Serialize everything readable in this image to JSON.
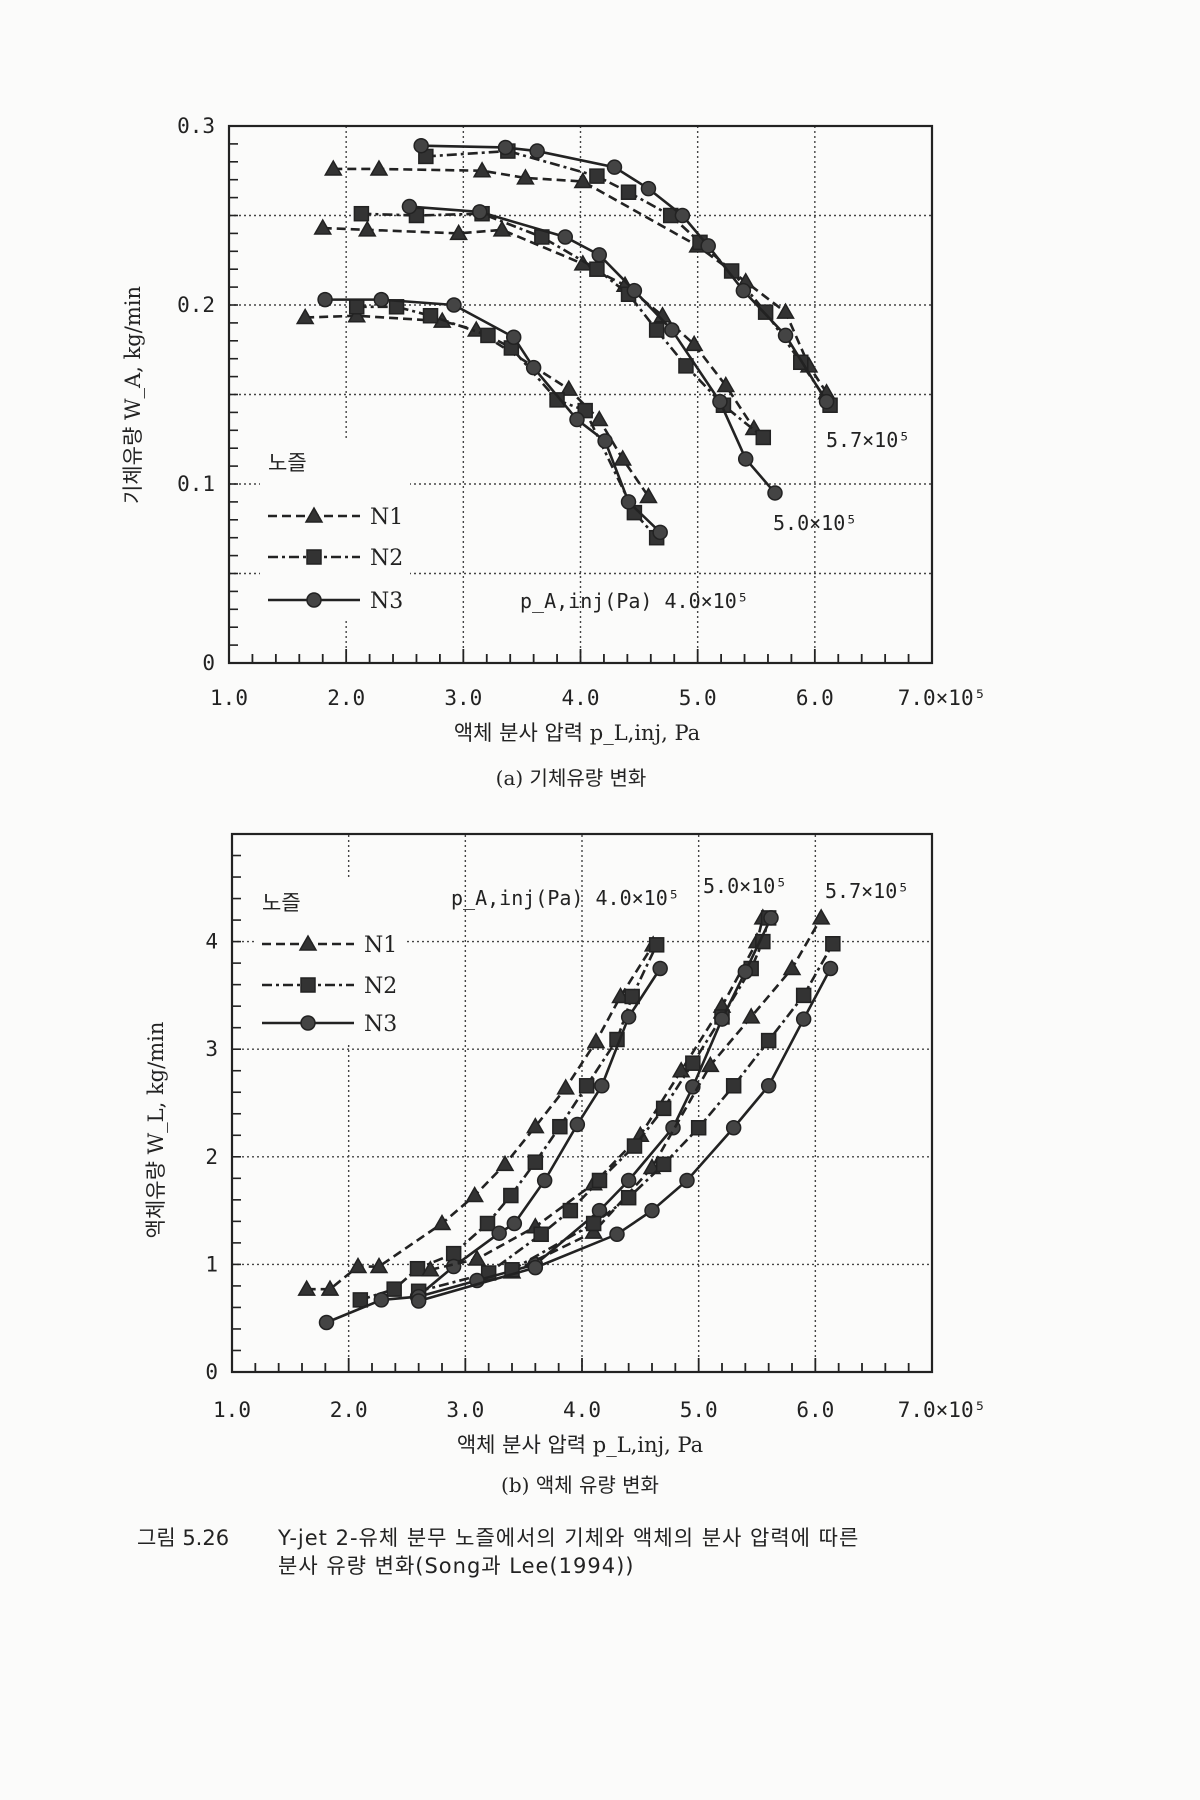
{
  "chart_data": [
    {
      "type": "line",
      "panel_label": "(a) 기체유량 변화",
      "xlabel": "액체 분사 압력 p_L,inj, Pa",
      "ylabel": "기체유량 W_A, kg/min",
      "xlim": [
        1.0,
        7.0
      ],
      "ylim": [
        0,
        0.3
      ],
      "x_unit_suffix": "×10⁵",
      "xticks": [
        "1.0",
        "2.0",
        "3.0",
        "4.0",
        "5.0",
        "6.0",
        "7.0×10⁵"
      ],
      "yticks": [
        "0",
        "0.1",
        "0.2",
        "0.3"
      ],
      "grid": true,
      "legend": {
        "title": "노즐",
        "placement": "left",
        "entries": [
          "N1",
          "N2",
          "N3"
        ]
      },
      "annotations": [
        "5.7×10⁵",
        "5.0×10⁵",
        "p_A,inj(Pa) 4.0×10⁵"
      ],
      "series": [
        {
          "name": "N1",
          "pA": "5.7×10⁵",
          "points": [
            [
              1.89,
              0.276
            ],
            [
              2.28,
              0.276
            ],
            [
              3.16,
              0.275
            ],
            [
              3.53,
              0.271
            ],
            [
              4.02,
              0.269
            ],
            [
              5.0,
              0.233
            ],
            [
              5.41,
              0.213
            ],
            [
              5.75,
              0.196
            ],
            [
              5.95,
              0.166
            ],
            [
              6.1,
              0.151
            ]
          ]
        },
        {
          "name": "N2",
          "pA": "5.7×10⁵",
          "points": [
            [
              2.68,
              0.283
            ],
            [
              3.38,
              0.286
            ],
            [
              4.14,
              0.272
            ],
            [
              4.41,
              0.263
            ],
            [
              4.77,
              0.25
            ],
            [
              5.02,
              0.235
            ],
            [
              5.29,
              0.219
            ],
            [
              5.58,
              0.196
            ],
            [
              5.88,
              0.168
            ],
            [
              6.13,
              0.144
            ]
          ]
        },
        {
          "name": "N3",
          "pA": "5.7×10⁵",
          "points": [
            [
              2.64,
              0.289
            ],
            [
              3.36,
              0.288
            ],
            [
              3.63,
              0.286
            ],
            [
              4.29,
              0.277
            ],
            [
              4.58,
              0.265
            ],
            [
              4.87,
              0.25
            ],
            [
              5.09,
              0.233
            ],
            [
              5.39,
              0.208
            ],
            [
              5.75,
              0.183
            ],
            [
              6.1,
              0.146
            ]
          ]
        },
        {
          "name": "N1",
          "pA": "5.0×10⁵",
          "points": [
            [
              1.8,
              0.243
            ],
            [
              2.18,
              0.242
            ],
            [
              2.96,
              0.24
            ],
            [
              3.33,
              0.242
            ],
            [
              4.02,
              0.223
            ],
            [
              4.38,
              0.211
            ],
            [
              4.7,
              0.194
            ],
            [
              4.97,
              0.178
            ],
            [
              5.24,
              0.155
            ],
            [
              5.48,
              0.131
            ]
          ]
        },
        {
          "name": "N2",
          "pA": "5.0×10⁵",
          "points": [
            [
              2.13,
              0.251
            ],
            [
              2.6,
              0.25
            ],
            [
              3.16,
              0.251
            ],
            [
              3.67,
              0.238
            ],
            [
              4.14,
              0.22
            ],
            [
              4.41,
              0.206
            ],
            [
              4.65,
              0.186
            ],
            [
              4.9,
              0.166
            ],
            [
              5.22,
              0.144
            ],
            [
              5.56,
              0.126
            ]
          ]
        },
        {
          "name": "N3",
          "pA": "5.0×10⁵",
          "points": [
            [
              2.54,
              0.255
            ],
            [
              3.14,
              0.252
            ],
            [
              3.87,
              0.238
            ],
            [
              4.16,
              0.228
            ],
            [
              4.46,
              0.208
            ],
            [
              4.78,
              0.186
            ],
            [
              5.19,
              0.146
            ],
            [
              5.41,
              0.114
            ],
            [
              5.66,
              0.095
            ]
          ]
        },
        {
          "name": "N1",
          "pA": "4.0×10⁵",
          "points": [
            [
              1.65,
              0.193
            ],
            [
              2.09,
              0.194
            ],
            [
              2.82,
              0.191
            ],
            [
              3.11,
              0.186
            ],
            [
              3.9,
              0.153
            ],
            [
              4.16,
              0.136
            ],
            [
              4.36,
              0.114
            ],
            [
              4.58,
              0.093
            ]
          ]
        },
        {
          "name": "N2",
          "pA": "4.0×10⁵",
          "points": [
            [
              2.09,
              0.199
            ],
            [
              2.43,
              0.199
            ],
            [
              2.72,
              0.194
            ],
            [
              3.21,
              0.183
            ],
            [
              3.41,
              0.176
            ],
            [
              3.8,
              0.147
            ],
            [
              4.04,
              0.141
            ],
            [
              4.46,
              0.084
            ],
            [
              4.65,
              0.07
            ]
          ]
        },
        {
          "name": "N3",
          "pA": "4.0×10⁵",
          "points": [
            [
              1.82,
              0.203
            ],
            [
              2.3,
              0.203
            ],
            [
              2.92,
              0.2
            ],
            [
              3.43,
              0.182
            ],
            [
              3.6,
              0.165
            ],
            [
              3.97,
              0.136
            ],
            [
              4.21,
              0.124
            ],
            [
              4.41,
              0.09
            ],
            [
              4.68,
              0.073
            ]
          ]
        }
      ]
    },
    {
      "type": "line",
      "panel_label": "(b) 액체 유량 변화",
      "xlabel": "액체 분사 압력 p_L,inj, Pa",
      "ylabel": "액체유량 W_L, kg/min",
      "xlim": [
        1.0,
        7.0
      ],
      "ylim": [
        0,
        5
      ],
      "xticks": [
        "1.0",
        "2.0",
        "3.0",
        "4.0",
        "5.0",
        "6.0",
        "7.0×10⁵"
      ],
      "yticks": [
        "0",
        "1",
        "2",
        "3",
        "4"
      ],
      "grid": true,
      "legend": {
        "title": "노즐",
        "placement": "top-left",
        "entries": [
          "N1",
          "N2",
          "N3"
        ]
      },
      "annotations": [
        "p_A,inj(Pa) 4.0×10⁵",
        "5.0×10⁵",
        "5.7×10⁵"
      ],
      "series": [
        {
          "name": "N1",
          "pA": "4.0×10⁵",
          "points": [
            [
              1.64,
              0.77
            ],
            [
              1.84,
              0.77
            ],
            [
              2.08,
              0.98
            ],
            [
              2.26,
              0.98
            ],
            [
              2.8,
              1.38
            ],
            [
              3.08,
              1.64
            ],
            [
              3.34,
              1.93
            ],
            [
              3.6,
              2.28
            ],
            [
              3.86,
              2.64
            ],
            [
              4.12,
              3.07
            ],
            [
              4.33,
              3.49
            ],
            [
              4.61,
              3.97
            ]
          ]
        },
        {
          "name": "N2",
          "pA": "4.0×10⁵",
          "points": [
            [
              2.1,
              0.67
            ],
            [
              2.39,
              0.77
            ],
            [
              2.59,
              0.96
            ],
            [
              2.9,
              1.1
            ],
            [
              3.19,
              1.38
            ],
            [
              3.39,
              1.64
            ],
            [
              3.6,
              1.95
            ],
            [
              3.81,
              2.28
            ],
            [
              4.04,
              2.66
            ],
            [
              4.3,
              3.09
            ],
            [
              4.43,
              3.49
            ],
            [
              4.64,
              3.97
            ]
          ]
        },
        {
          "name": "N3",
          "pA": "4.0×10⁵",
          "points": [
            [
              1.81,
              0.46
            ],
            [
              2.28,
              0.67
            ],
            [
              2.59,
              0.7
            ],
            [
              2.9,
              0.98
            ],
            [
              3.29,
              1.29
            ],
            [
              3.42,
              1.38
            ],
            [
              3.68,
              1.78
            ],
            [
              3.96,
              2.3
            ],
            [
              4.17,
              2.66
            ],
            [
              4.4,
              3.3
            ],
            [
              4.67,
              3.75
            ]
          ]
        },
        {
          "name": "N1",
          "pA": "5.0×10⁵",
          "points": [
            [
              2.7,
              0.95
            ],
            [
              3.1,
              1.05
            ],
            [
              3.6,
              1.35
            ],
            [
              4.1,
              1.75
            ],
            [
              4.5,
              2.2
            ],
            [
              4.85,
              2.8
            ],
            [
              5.2,
              3.4
            ],
            [
              5.5,
              4.0
            ],
            [
              5.55,
              4.22
            ]
          ]
        },
        {
          "name": "N2",
          "pA": "5.0×10⁵",
          "points": [
            [
              2.6,
              0.75
            ],
            [
              3.2,
              0.92
            ],
            [
              3.65,
              1.28
            ],
            [
              3.9,
              1.5
            ],
            [
              4.15,
              1.78
            ],
            [
              4.45,
              2.1
            ],
            [
              4.7,
              2.45
            ],
            [
              4.95,
              2.87
            ],
            [
              5.2,
              3.3
            ],
            [
              5.45,
              3.75
            ],
            [
              5.55,
              4.0
            ],
            [
              5.6,
              4.22
            ]
          ]
        },
        {
          "name": "N3",
          "pA": "5.0×10⁵",
          "points": [
            [
              2.6,
              0.7
            ],
            [
              3.1,
              0.85
            ],
            [
              3.6,
              1.0
            ],
            [
              4.15,
              1.5
            ],
            [
              4.4,
              1.78
            ],
            [
              4.78,
              2.27
            ],
            [
              4.95,
              2.65
            ],
            [
              5.2,
              3.28
            ],
            [
              5.4,
              3.72
            ],
            [
              5.62,
              4.22
            ]
          ]
        },
        {
          "name": "N1",
          "pA": "5.7×10⁵",
          "points": [
            [
              3.4,
              0.93
            ],
            [
              4.1,
              1.3
            ],
            [
              4.6,
              1.9
            ],
            [
              5.1,
              2.85
            ],
            [
              5.45,
              3.3
            ],
            [
              5.8,
              3.75
            ],
            [
              6.05,
              4.22
            ]
          ]
        },
        {
          "name": "N2",
          "pA": "5.7×10⁵",
          "points": [
            [
              3.4,
              0.95
            ],
            [
              4.1,
              1.38
            ],
            [
              4.4,
              1.62
            ],
            [
              4.7,
              1.93
            ],
            [
              5.0,
              2.27
            ],
            [
              5.3,
              2.66
            ],
            [
              5.6,
              3.08
            ],
            [
              5.9,
              3.5
            ],
            [
              6.15,
              3.98
            ]
          ]
        },
        {
          "name": "N3",
          "pA": "5.7×10⁵",
          "points": [
            [
              2.6,
              0.66
            ],
            [
              3.6,
              0.97
            ],
            [
              4.3,
              1.28
            ],
            [
              4.6,
              1.5
            ],
            [
              4.9,
              1.78
            ],
            [
              5.3,
              2.27
            ],
            [
              5.6,
              2.66
            ],
            [
              5.9,
              3.28
            ],
            [
              6.13,
              3.75
            ]
          ]
        }
      ]
    }
  ],
  "figure_caption": {
    "number": "그림 5.26",
    "line1": "Y-jet 2-유체 분무 노즐에서의 기체와 액체의 분사 압력에 따른",
    "line2": "분사 유량 변화(Song과 Lee(1994))"
  },
  "colors": {
    "ink": "#222222",
    "grid": "#444444",
    "paper": "#fbfbfa"
  }
}
